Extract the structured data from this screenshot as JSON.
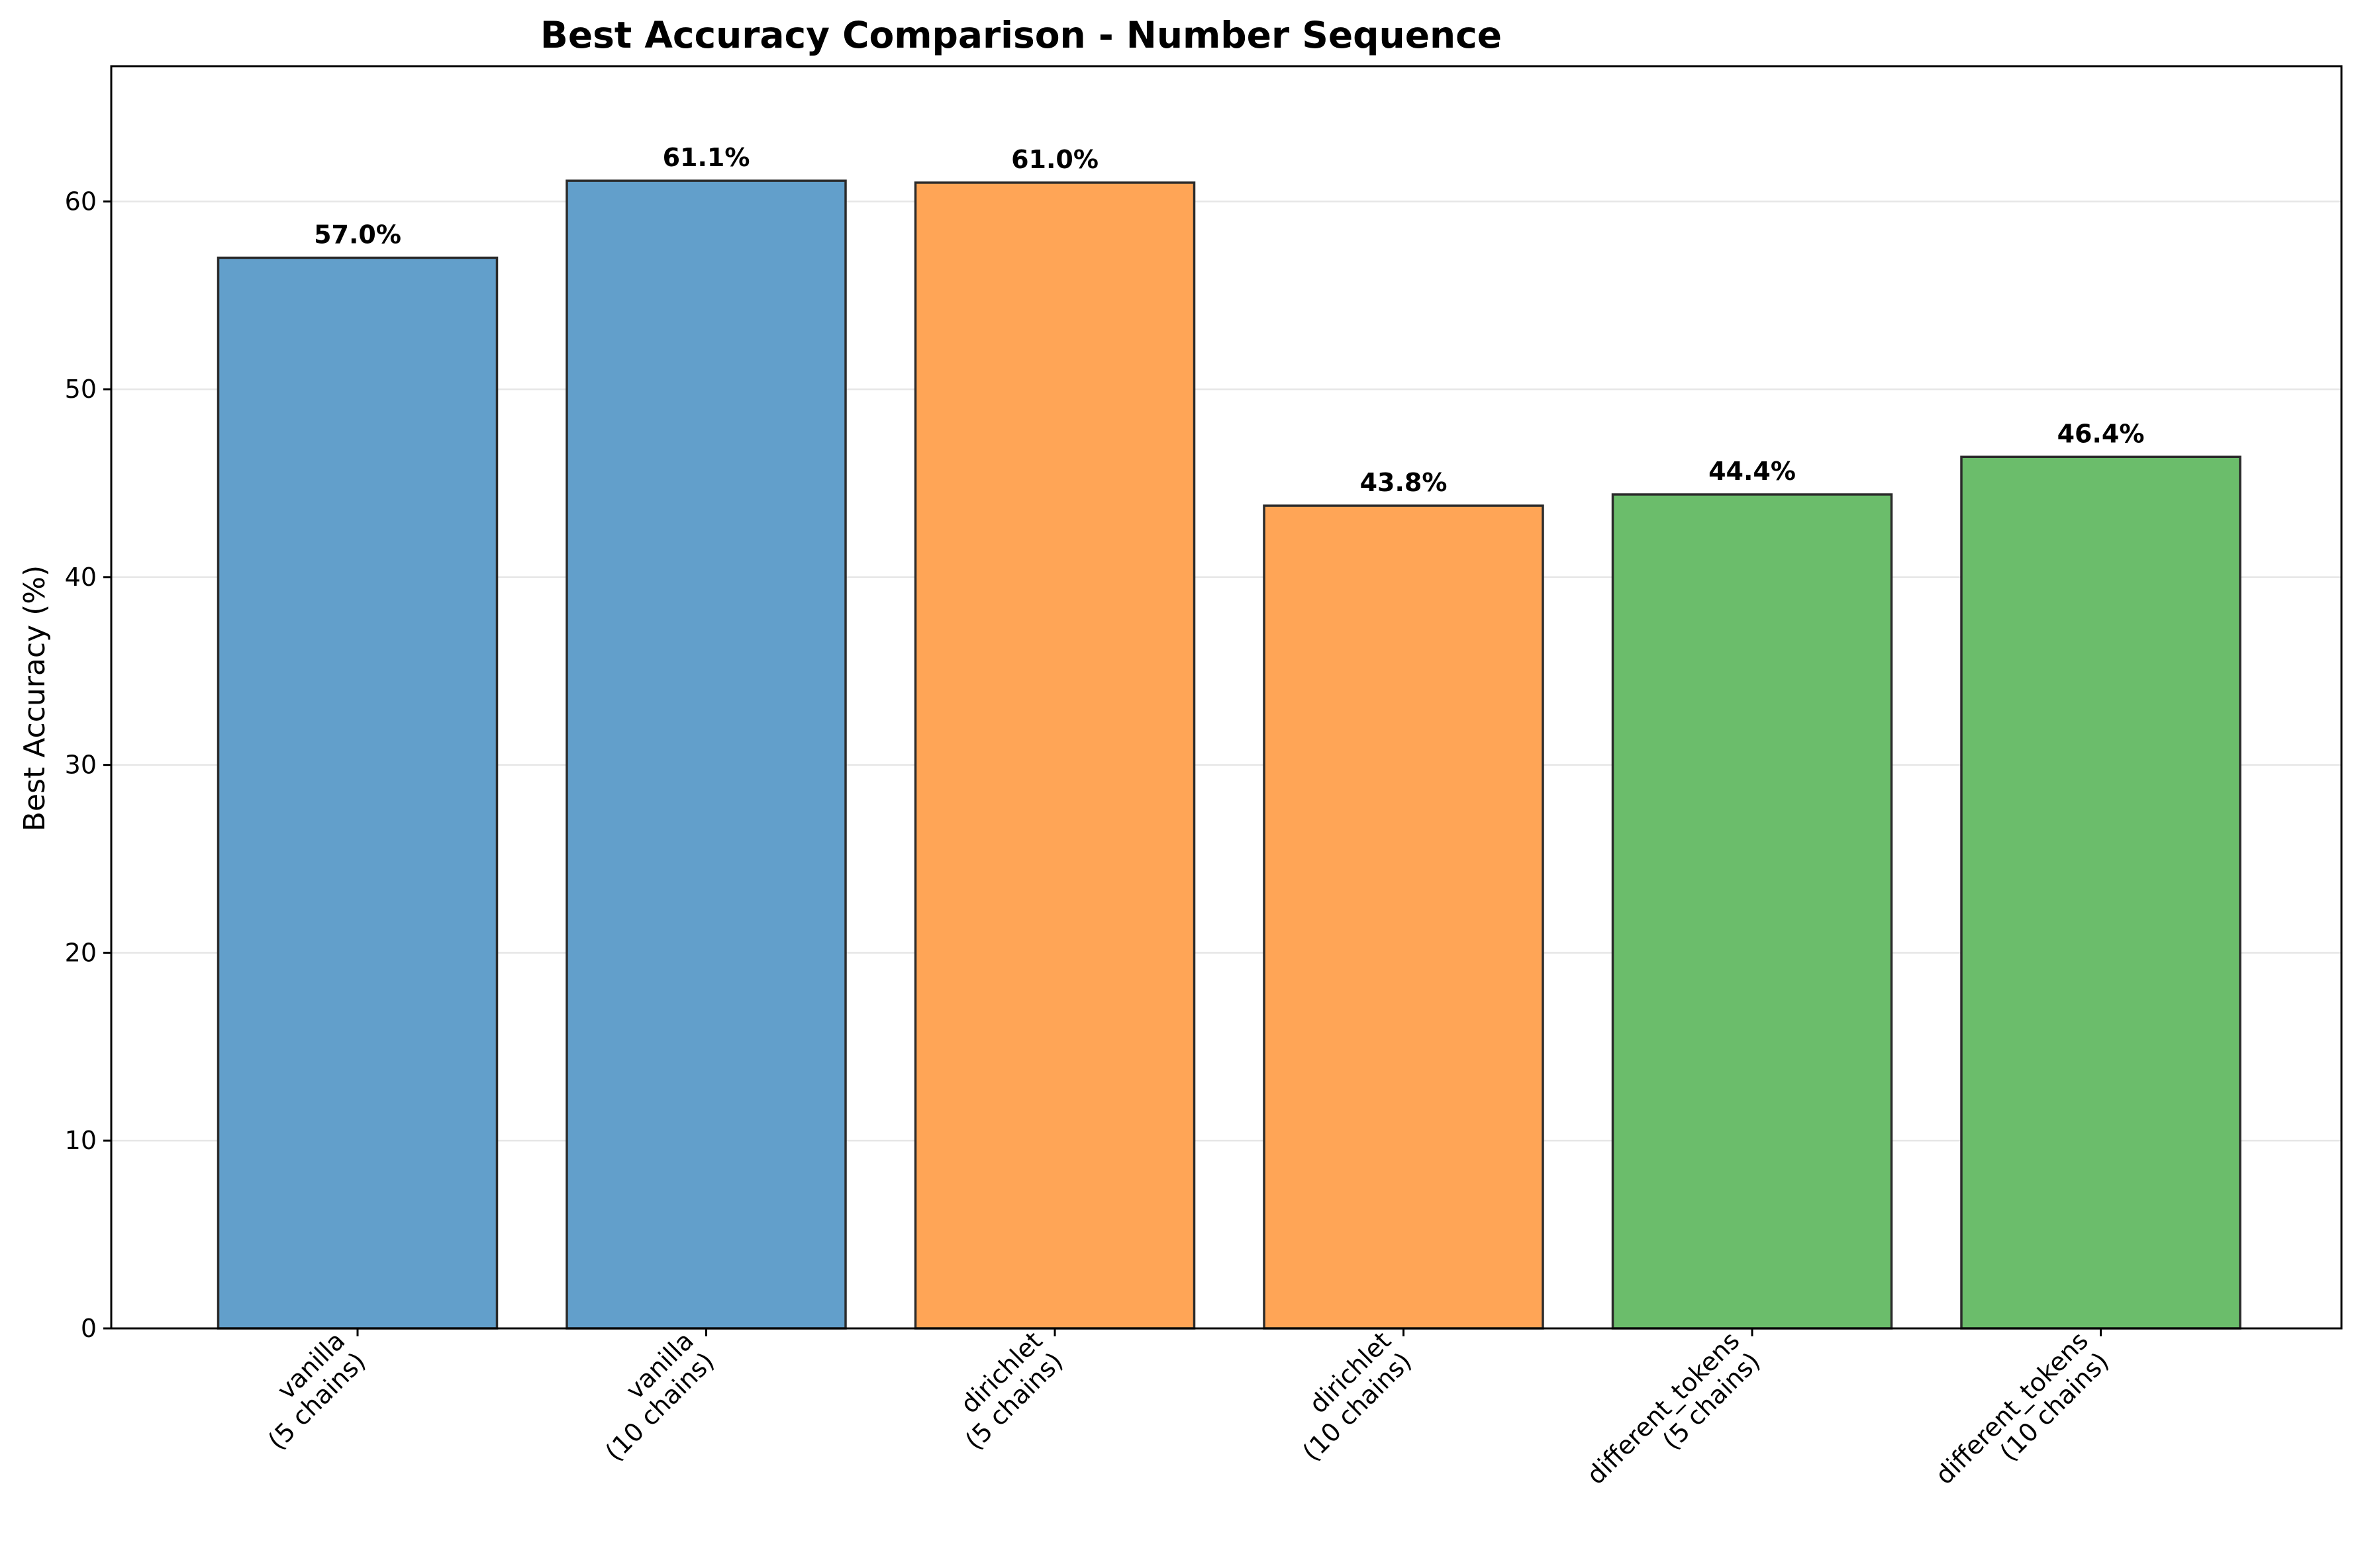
{
  "chart_data": {
    "type": "bar",
    "title": "Best Accuracy Comparison - Number Sequence",
    "xlabel": "",
    "ylabel": "Best Accuracy (%)",
    "ylim": [
      0,
      67.2
    ],
    "yticks": [
      0,
      10,
      20,
      30,
      40,
      50,
      60
    ],
    "grid": "horizontal",
    "categories": [
      [
        "vanilla",
        "(5 chains)"
      ],
      [
        "vanilla",
        "(10 chains)"
      ],
      [
        "dirichlet",
        "(5 chains)"
      ],
      [
        "dirichlet",
        "(10 chains)"
      ],
      [
        "different_tokens",
        "(5 chains)"
      ],
      [
        "different_tokens",
        "(10 chains)"
      ]
    ],
    "values": [
      57.0,
      61.1,
      61.0,
      43.8,
      44.4,
      46.4
    ],
    "value_labels": [
      "57.0%",
      "61.1%",
      "61.0%",
      "43.8%",
      "44.4%",
      "46.4%"
    ],
    "colors": [
      "#629fcb",
      "#629fcb",
      "#ffa556",
      "#ffa556",
      "#6bbd6b",
      "#6bbd6b"
    ]
  }
}
